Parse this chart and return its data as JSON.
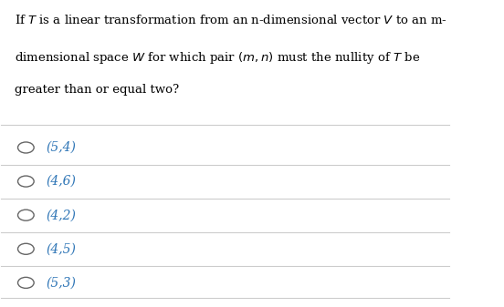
{
  "background_color": "#ffffff",
  "question_lines": [
    "If $\\mathit{T}$ is a linear transformation from an n-dimensional vector $\\mathit{V}$ to an m-",
    "dimensional space $\\mathit{W}$ for which pair $(m, n)$ must the nullity of $\\mathit{T}$ be",
    "greater than or equal two?"
  ],
  "options": [
    "(5,4)",
    "(4,6)",
    "(4,2)",
    "(4,5)",
    "(5,3)"
  ],
  "option_color": "#2e75b6",
  "question_color": "#000000",
  "line_color": "#cccccc",
  "circle_color": "#666666",
  "figsize": [
    5.52,
    3.37
  ],
  "dpi": 100
}
